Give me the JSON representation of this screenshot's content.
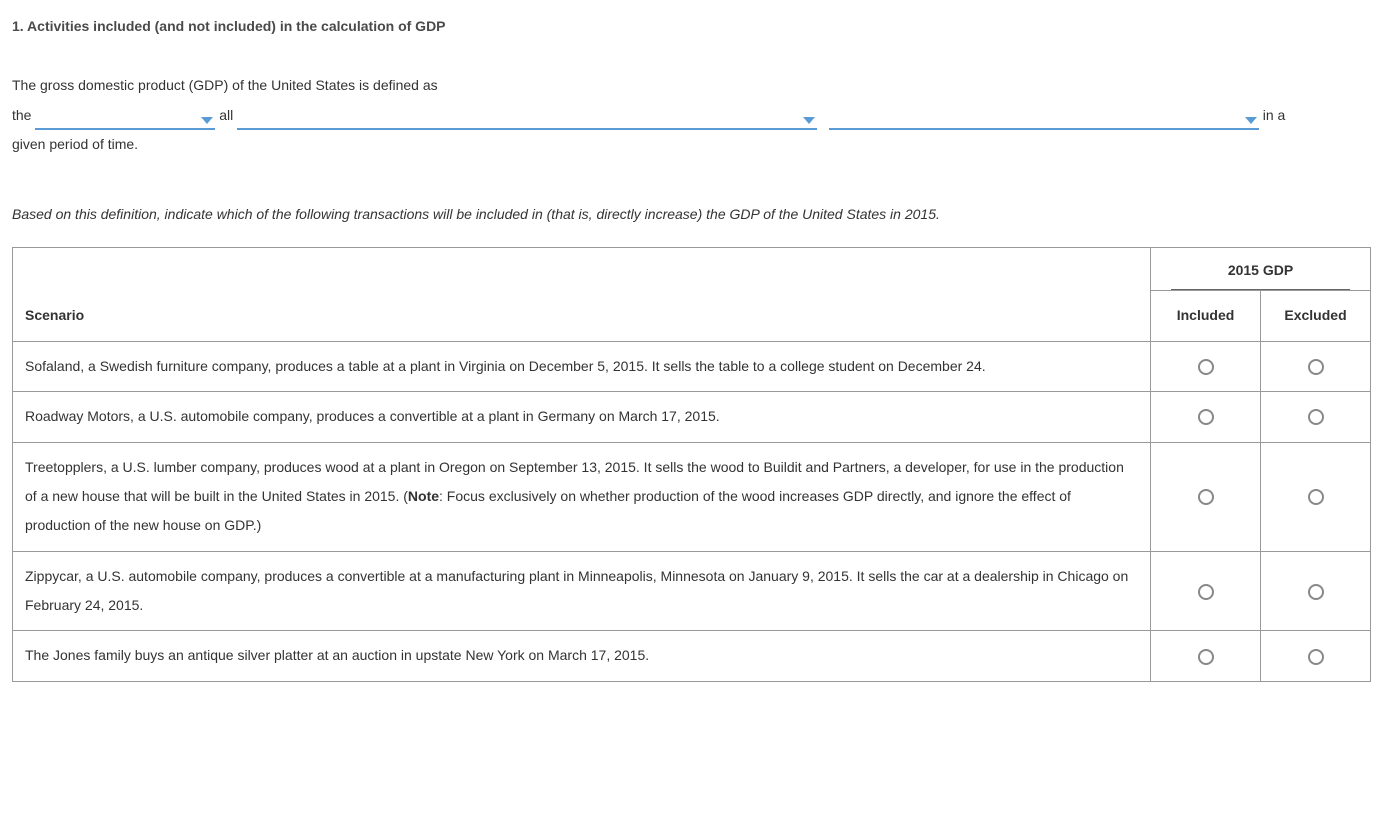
{
  "title": "1. Activities included (and not included) in the calculation of GDP",
  "intro": {
    "part1": "The gross domestic product (GDP) of the United States is defined as",
    "part2": "the",
    "part3": "all",
    "part4": "in a",
    "part5": "given period of time."
  },
  "instruction": "Based on this definition, indicate which of the following transactions will be included in (that is, directly increase) the GDP of the United States in 2015.",
  "table": {
    "scenario_header": "Scenario",
    "group_header": "2015 GDP",
    "included_header": "Included",
    "excluded_header": "Excluded",
    "rows": [
      {
        "text": "Sofaland, a Swedish furniture company, produces a table at a plant in Virginia on December 5, 2015. It sells the table to a college student on December 24."
      },
      {
        "text": "Roadway Motors, a U.S. automobile company, produces a convertible at a plant in Germany on March 17, 2015."
      },
      {
        "pre": "Treetopplers, a U.S. lumber company, produces wood at a plant in Oregon on September 13, 2015. It sells the wood to Buildit and Partners, a developer, for use in the production of a new house that will be built in the United States in 2015. (",
        "note_label": "Note",
        "post": ": Focus exclusively on whether production of the wood increases GDP directly, and ignore the effect of production of the new house on GDP.)"
      },
      {
        "text": "Zippycar, a U.S. automobile company, produces a convertible at a manufacturing plant in Minneapolis, Minnesota on January 9, 2015. It sells the car at a dealership in Chicago on February 24, 2015."
      },
      {
        "text": "The Jones family buys an antique silver platter at an auction in upstate New York on March 17, 2015."
      }
    ]
  }
}
